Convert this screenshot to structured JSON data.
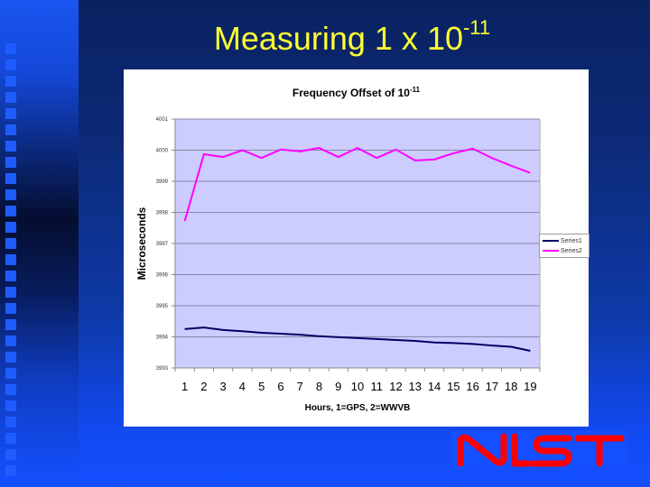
{
  "slide": {
    "title_main": "Measuring 1 x 10",
    "title_exponent": "-11",
    "title_color": "#ffff33",
    "logo_text": "NIST",
    "logo_color": "#ff0000"
  },
  "chart_data": {
    "type": "line",
    "title": "Frequency Offset of 10^-11",
    "title_main": "Frequency Offset of 10",
    "title_exponent": "-11",
    "xlabel": "Hours, 1=GPS, 2=WWVB",
    "ylabel": "Microseconds",
    "x": [
      1,
      2,
      3,
      4,
      5,
      6,
      7,
      8,
      9,
      10,
      11,
      12,
      13,
      14,
      15,
      16,
      17,
      18,
      19
    ],
    "yticks": [
      3993,
      3994,
      3995,
      3996,
      3997,
      3998,
      3999,
      4000,
      4001
    ],
    "ylim": [
      3993,
      4001
    ],
    "grid": true,
    "plot_background": "#ccccff",
    "legend_position": "right",
    "series": [
      {
        "name": "Series1",
        "color": "#000066",
        "values": [
          3994.25,
          3994.3,
          3994.22,
          3994.18,
          3994.13,
          3994.1,
          3994.07,
          3994.02,
          3993.99,
          3993.96,
          3993.93,
          3993.9,
          3993.87,
          3993.82,
          3993.8,
          3993.77,
          3993.72,
          3993.68,
          3993.55
        ]
      },
      {
        "name": "Series2",
        "color": "#ff00ff",
        "values": [
          3997.72,
          3999.87,
          3999.78,
          4000.0,
          3999.75,
          4000.02,
          3999.96,
          4000.07,
          3999.78,
          4000.07,
          3999.75,
          4000.02,
          3999.67,
          3999.7,
          3999.9,
          4000.05,
          3999.75,
          3999.5,
          3999.27
        ]
      }
    ]
  }
}
